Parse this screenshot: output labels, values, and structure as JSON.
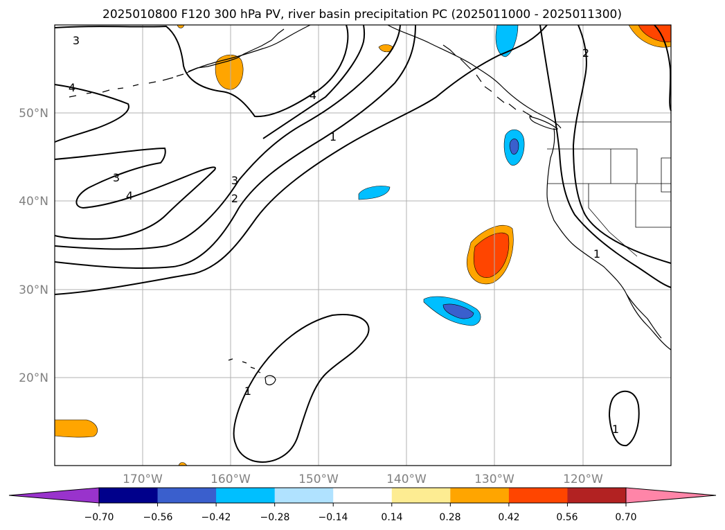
{
  "title": "2025010800 F120 300 hPa PV, river basin precipitation PC (2025011000 - 2025011300)",
  "map": {
    "lat_labels": [
      "50°N",
      "40°N",
      "30°N",
      "20°N"
    ],
    "lon_labels": [
      "170°W",
      "160°W",
      "150°W",
      "140°W",
      "130°W",
      "120°W"
    ],
    "label_color": "#808080",
    "grid_color": "#b0b0b0",
    "contour_labels": [
      "3",
      "4",
      "4",
      "1",
      "3",
      "4",
      "3",
      "2",
      "1",
      "1",
      "2",
      "1"
    ]
  },
  "colorbar": {
    "tick_labels": [
      "−0.70",
      "−0.56",
      "−0.42",
      "−0.28",
      "−0.14",
      "0.14",
      "0.28",
      "0.42",
      "0.56",
      "0.70"
    ],
    "colors": [
      "#9933cc",
      "#00008b",
      "#3a5fcd",
      "#00bfff",
      "#b0e2ff",
      "#ffffff",
      "#fdec92",
      "#ffa500",
      "#ff4500",
      "#b22222",
      "#ff85a8"
    ]
  }
}
